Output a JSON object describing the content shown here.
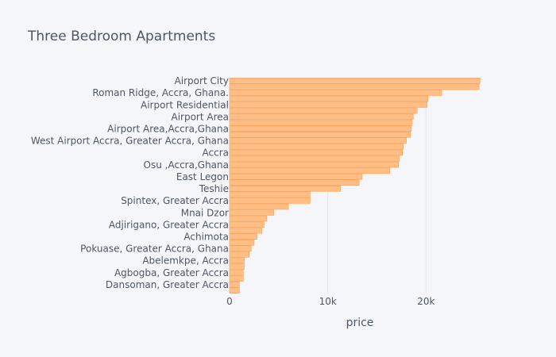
{
  "chart_data": {
    "type": "bar",
    "orientation": "horizontal",
    "title": "Three Bedroom Apartments",
    "xlabel": "price",
    "ylabel": "",
    "xlim": [
      0,
      26600
    ],
    "x_ticks": [
      0,
      10000,
      20000
    ],
    "x_tick_labels": [
      "0",
      "10k",
      "20k"
    ],
    "grid": true,
    "legend": "none",
    "bar_color": "#ffbe85",
    "bar_edge_color": "#f7a25a",
    "y_tick_labels": [
      "Airport City",
      "Roman Ridge, Accra, Ghana.",
      "Airport Residential",
      "Airport Area",
      "Airport Area,Accra,Ghana",
      "West Airport Accra, Greater Accra, Ghana",
      "Accra",
      "Osu ,Accra,Ghana",
      "East Legon",
      "Teshie",
      "Spintex, Greater Accra",
      "Mnai Dzor",
      "Adjirigano, Greater Accra",
      "Achimota",
      "Pokuase, Greater Accra, Ghana",
      "Abelemkpe, Accra",
      "Agbogba, Greater Accra",
      "Dansoman, Greater Accra"
    ],
    "values": [
      25500,
      25400,
      21600,
      20200,
      20100,
      19100,
      18700,
      18600,
      18500,
      18400,
      18000,
      17700,
      17600,
      17300,
      17200,
      16300,
      13500,
      13200,
      11300,
      8200,
      8200,
      6000,
      4500,
      3800,
      3500,
      3300,
      2800,
      2500,
      2200,
      2000,
      1500,
      1500,
      1400,
      1400,
      1000,
      1000
    ]
  }
}
